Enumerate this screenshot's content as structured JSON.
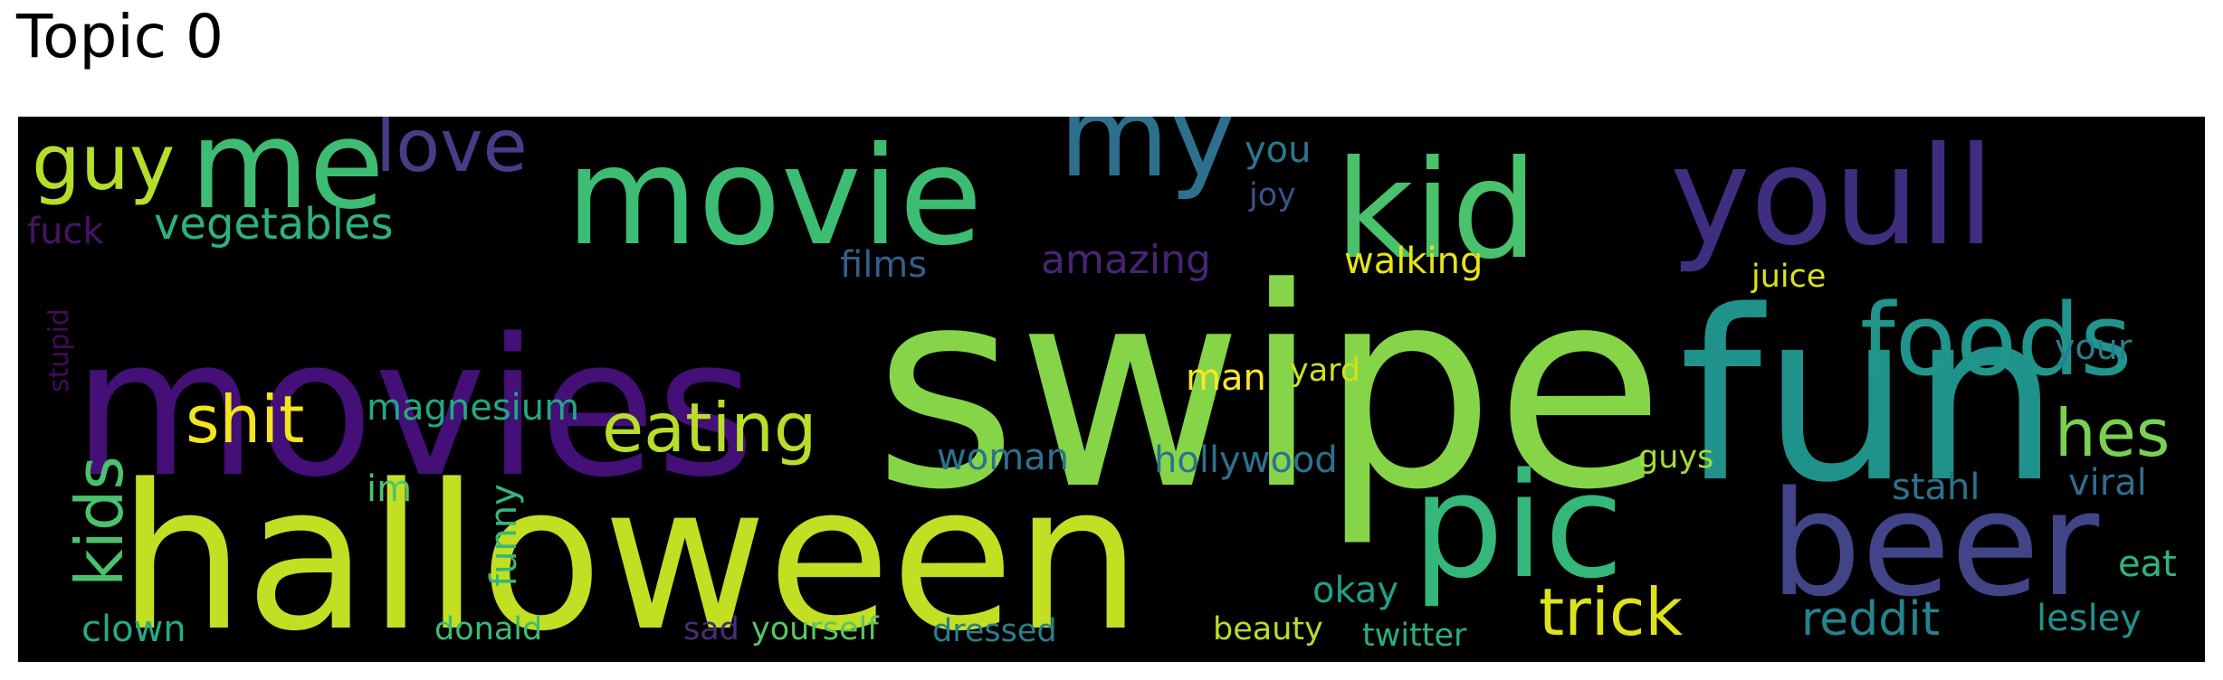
{
  "title": "Topic 0",
  "colors": {
    "background": "#000000",
    "page": "#ffffff",
    "title": "#000000"
  },
  "words": [
    {
      "text": "swipe",
      "color": "#86d549"
    },
    {
      "text": "halloween",
      "color": "#c2df23"
    },
    {
      "text": "movies",
      "color": "#440f76"
    },
    {
      "text": "fun",
      "color": "#20928c"
    },
    {
      "text": "movie",
      "color": "#3dbc74"
    },
    {
      "text": "kid",
      "color": "#4ac16d"
    },
    {
      "text": "youll",
      "color": "#3f2d7f"
    },
    {
      "text": "beer",
      "color": "#414487"
    },
    {
      "text": "pic",
      "color": "#35b779"
    },
    {
      "text": "me",
      "color": "#3fbc73"
    },
    {
      "text": "my",
      "color": "#2d708e"
    },
    {
      "text": "foods",
      "color": "#1f958b"
    },
    {
      "text": "love",
      "color": "#433e85"
    },
    {
      "text": "guy",
      "color": "#b5de2b"
    },
    {
      "text": "eating",
      "color": "#b8de29"
    },
    {
      "text": "shit",
      "color": "#f1e51d"
    },
    {
      "text": "trick",
      "color": "#dde318"
    },
    {
      "text": "hes",
      "color": "#7ad151"
    },
    {
      "text": "kids",
      "color": "#4ac16d"
    },
    {
      "text": "reddit",
      "color": "#26828e"
    },
    {
      "text": "vegetables",
      "color": "#2db27d"
    },
    {
      "text": "amazing",
      "color": "#482475"
    },
    {
      "text": "walking",
      "color": "#e5e419"
    },
    {
      "text": "films",
      "color": "#355f8d"
    },
    {
      "text": "you",
      "color": "#2a788e"
    },
    {
      "text": "joy",
      "color": "#3b528b"
    },
    {
      "text": "juice",
      "color": "#dae319"
    },
    {
      "text": "your",
      "color": "#287d8e"
    },
    {
      "text": "fuck",
      "color": "#471365"
    },
    {
      "text": "stupid",
      "color": "#46085c"
    },
    {
      "text": "man",
      "color": "#fde725"
    },
    {
      "text": "yard",
      "color": "#d0e11c"
    },
    {
      "text": "magnesium",
      "color": "#22a884"
    },
    {
      "text": "woman",
      "color": "#2c728e"
    },
    {
      "text": "hollywood",
      "color": "#2c728e"
    },
    {
      "text": "guys",
      "color": "#a5db36"
    },
    {
      "text": "stahl",
      "color": "#2c728e"
    },
    {
      "text": "viral",
      "color": "#2e6e8e"
    },
    {
      "text": "im",
      "color": "#4ec36b"
    },
    {
      "text": "funny",
      "color": "#35b779"
    },
    {
      "text": "okay",
      "color": "#1fa188"
    },
    {
      "text": "eat",
      "color": "#2fb47c"
    },
    {
      "text": "lesley",
      "color": "#21918c"
    },
    {
      "text": "clown",
      "color": "#25ab82"
    },
    {
      "text": "donald",
      "color": "#3dbc74"
    },
    {
      "text": "sad",
      "color": "#472d7b"
    },
    {
      "text": "yourself",
      "color": "#56c667"
    },
    {
      "text": "dressed",
      "color": "#27808e"
    },
    {
      "text": "beauty",
      "color": "#b5de2b"
    },
    {
      "text": "twitter",
      "color": "#2ab07f"
    }
  ]
}
